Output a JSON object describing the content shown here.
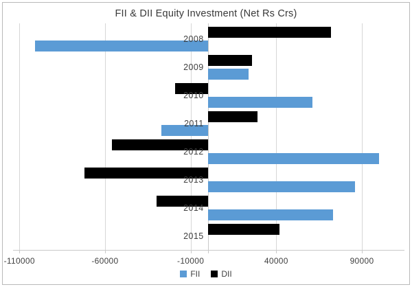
{
  "chart_data": {
    "type": "bar",
    "orientation": "horizontal",
    "title": "FII & DII Equity Investment (Net Rs Crs)",
    "categories": [
      "2008",
      "2009",
      "2010",
      "2011",
      "2012",
      "2013",
      "2014",
      "2015"
    ],
    "series": [
      {
        "name": "FII",
        "color": "#5b9bd5",
        "values": [
          -101000,
          24000,
          61000,
          -27000,
          100000,
          86000,
          73000,
          0
        ]
      },
      {
        "name": "DII",
        "color": "#000000",
        "values": [
          72000,
          26000,
          -19000,
          29000,
          -56000,
          -72000,
          -30000,
          42000
        ]
      }
    ],
    "x_ticks": [
      -110000,
      -60000,
      -10000,
      40000,
      90000
    ],
    "x_tick_labels": [
      "-110000",
      "-60000",
      "-10000",
      "40000",
      "90000"
    ],
    "xlim": [
      -113700,
      114850
    ],
    "grid": "vertical",
    "legend_position": "bottom",
    "xlabel": "",
    "ylabel": ""
  }
}
